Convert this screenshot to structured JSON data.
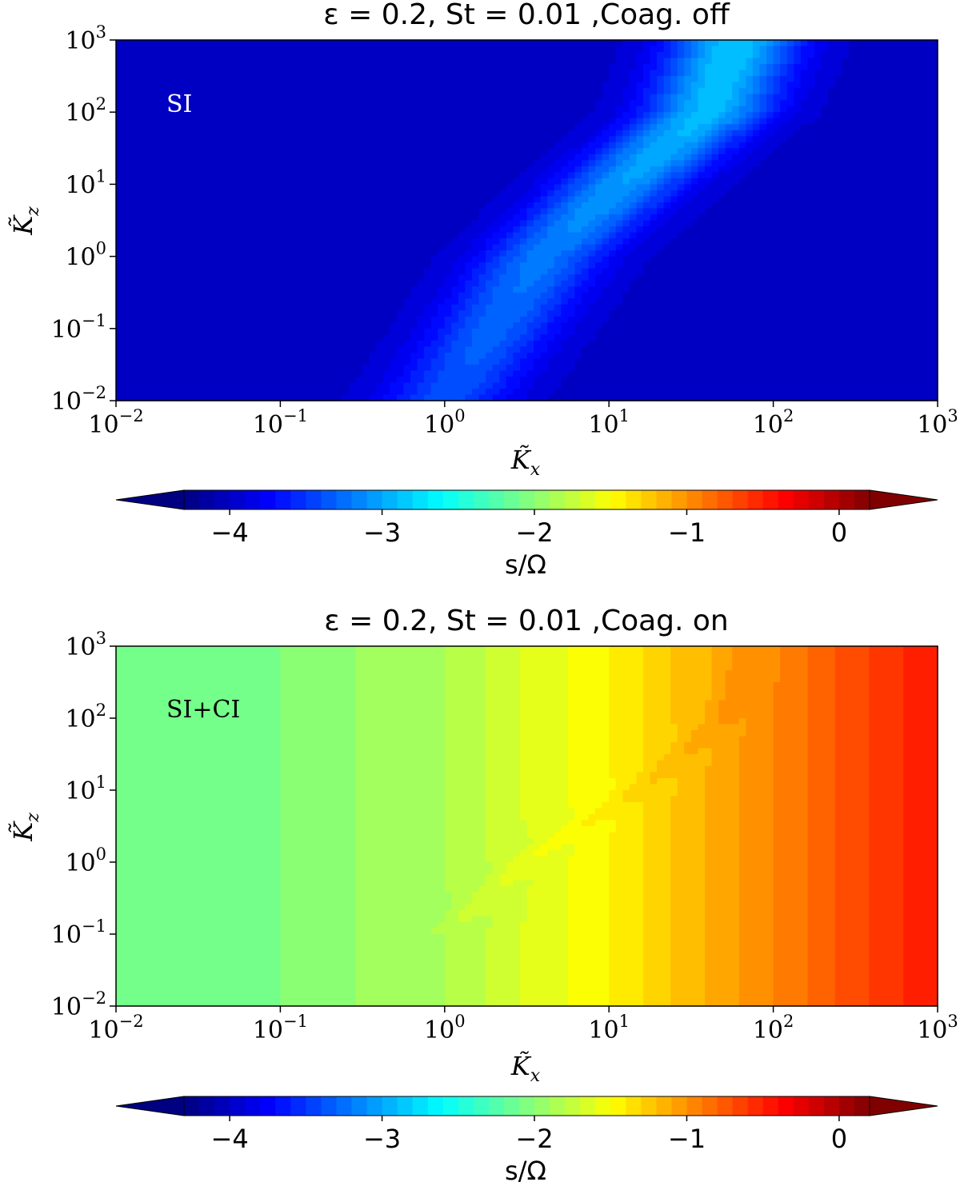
{
  "chart_data": [
    {
      "type": "heatmap",
      "title": "ε = 0.2, St = 0.01 ,Coag. off",
      "xlabel": "K̃x",
      "ylabel": "K̃z",
      "x_scale": "log",
      "y_scale": "log",
      "xlim": [
        0.01,
        1000
      ],
      "ylim": [
        0.01,
        1000
      ],
      "x_ticks": [
        "10−2",
        "10−1",
        "100",
        "101",
        "102",
        "103"
      ],
      "y_ticks": [
        "10−2",
        "10−1",
        "100",
        "101",
        "102",
        "103"
      ],
      "annotation": "SI",
      "field": "s/Ω",
      "background_level": -4.0,
      "ridge": [
        {
          "kx": 1.0,
          "kz": 0.01,
          "s": -3.4
        },
        {
          "kx": 2.0,
          "kz": 0.1,
          "s": -3.3
        },
        {
          "kx": 4.0,
          "kz": 1.0,
          "s": -3.2
        },
        {
          "kx": 12.0,
          "kz": 10.0,
          "s": -3.05
        },
        {
          "kx": 40.0,
          "kz": 100.0,
          "s": -2.9
        },
        {
          "kx": 60.0,
          "kz": 1000.0,
          "s": -2.85
        }
      ],
      "colorbar": {
        "label": "s/Ω",
        "min": -4.3,
        "max": 0.2,
        "ticks": [
          -4,
          -3,
          -2,
          -1,
          0
        ],
        "tick_labels": [
          "−4",
          "−3",
          "−2",
          "−1",
          "0"
        ],
        "colormap": "jet",
        "extend": "both"
      }
    },
    {
      "type": "heatmap",
      "title": "ε = 0.2, St = 0.01 ,Coag. on",
      "xlabel": "K̃x",
      "ylabel": "K̃z",
      "x_scale": "log",
      "y_scale": "log",
      "xlim": [
        0.01,
        1000
      ],
      "ylim": [
        0.01,
        1000
      ],
      "x_ticks": [
        "10−2",
        "10−1",
        "100",
        "101",
        "102",
        "103"
      ],
      "y_ticks": [
        "10−2",
        "10−1",
        "100",
        "101",
        "102",
        "103"
      ],
      "annotation": "SI+CI",
      "field": "s/Ω",
      "kx_profile": [
        {
          "kx": 0.01,
          "s": -2.1
        },
        {
          "kx": 0.1,
          "s": -2.05
        },
        {
          "kx": 0.3,
          "s": -1.95
        },
        {
          "kx": 1.0,
          "s": -1.85
        },
        {
          "kx": 3.0,
          "s": -1.65
        },
        {
          "kx": 10.0,
          "s": -1.45
        },
        {
          "kx": 30.0,
          "s": -1.2
        },
        {
          "kx": 100.0,
          "s": -0.95
        },
        {
          "kx": 300.0,
          "s": -0.7
        },
        {
          "kx": 1000.0,
          "s": -0.45
        }
      ],
      "ridge": [
        {
          "kx": 1.0,
          "kz": 0.1
        },
        {
          "kx": 3.0,
          "kz": 1.0
        },
        {
          "kx": 15.0,
          "kz": 10.0
        },
        {
          "kx": 50.0,
          "kz": 100.0
        },
        {
          "kx": 70.0,
          "kz": 1000.0
        }
      ],
      "colorbar": {
        "label": "s/Ω",
        "min": -4.3,
        "max": 0.2,
        "ticks": [
          -4,
          -3,
          -2,
          -1,
          0
        ],
        "tick_labels": [
          "−4",
          "−3",
          "−2",
          "−1",
          "0"
        ],
        "colormap": "jet",
        "extend": "both"
      }
    }
  ]
}
